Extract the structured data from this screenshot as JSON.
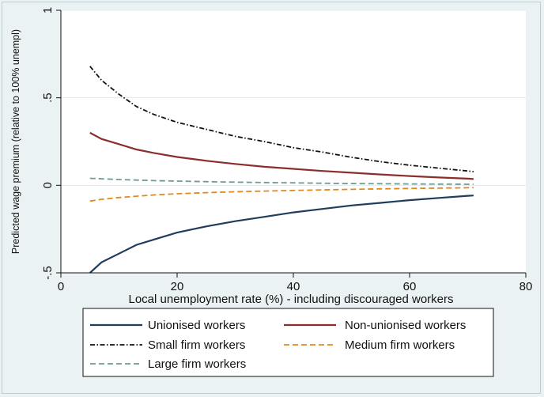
{
  "chart_data": {
    "type": "line",
    "xlabel": "Local unemployment rate (%) - including discouraged workers",
    "ylabel": "Predicted wage premium (relative to 100% unempl)",
    "xlim": [
      0,
      80
    ],
    "ylim": [
      -0.5,
      1
    ],
    "xticks": [
      0,
      20,
      40,
      60,
      80
    ],
    "xtick_labels": [
      "0",
      "20",
      "40",
      "60",
      "80"
    ],
    "yticks": [
      -0.5,
      0,
      0.5,
      1
    ],
    "ytick_labels": [
      "-.5",
      "0",
      ".5",
      "1"
    ],
    "grid": true,
    "legend_position": "bottom",
    "x": [
      5,
      7,
      10,
      13,
      16,
      20,
      25,
      30,
      35,
      40,
      45,
      50,
      55,
      60,
      65,
      70,
      71
    ],
    "series": [
      {
        "name": "Unionised workers",
        "color": "#1f3d5c",
        "dash": "solid",
        "values": [
          -0.5,
          -0.44,
          -0.39,
          -0.34,
          -0.31,
          -0.27,
          -0.235,
          -0.205,
          -0.18,
          -0.155,
          -0.135,
          -0.115,
          -0.1,
          -0.085,
          -0.072,
          -0.06,
          -0.058
        ]
      },
      {
        "name": "Non-unionised workers",
        "color": "#8b2e2e",
        "dash": "solid",
        "values": [
          0.3,
          0.265,
          0.235,
          0.205,
          0.185,
          0.162,
          0.14,
          0.122,
          0.106,
          0.094,
          0.082,
          0.072,
          0.062,
          0.053,
          0.045,
          0.038,
          0.036
        ]
      },
      {
        "name": "Small firm workers",
        "color": "#111111",
        "dash": "dashdot",
        "values": [
          0.68,
          0.6,
          0.52,
          0.45,
          0.405,
          0.36,
          0.32,
          0.28,
          0.25,
          0.215,
          0.19,
          0.16,
          0.135,
          0.115,
          0.098,
          0.082,
          0.078
        ]
      },
      {
        "name": "Medium firm workers",
        "color": "#e08a1e",
        "dash": "dash",
        "values": [
          -0.09,
          -0.08,
          -0.07,
          -0.062,
          -0.055,
          -0.048,
          -0.042,
          -0.037,
          -0.033,
          -0.029,
          -0.026,
          -0.023,
          -0.02,
          -0.018,
          -0.016,
          -0.014,
          -0.013
        ]
      },
      {
        "name": "Large firm workers",
        "color": "#6f9b95",
        "dash": "dash",
        "values": [
          0.04,
          0.037,
          0.033,
          0.03,
          0.027,
          0.024,
          0.021,
          0.018,
          0.016,
          0.014,
          0.012,
          0.01,
          0.009,
          0.008,
          0.007,
          0.006,
          0.006
        ]
      }
    ]
  }
}
